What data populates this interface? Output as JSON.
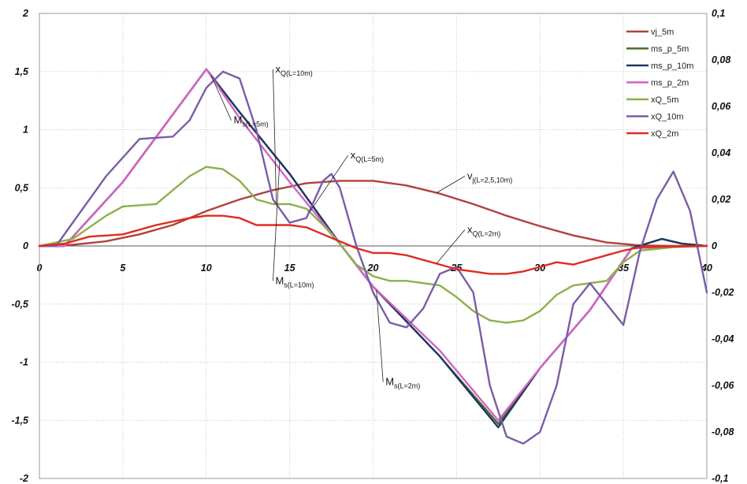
{
  "chart_data": {
    "type": "line",
    "title": "",
    "xlabel": "",
    "ylabel": "",
    "xlim": [
      0,
      40
    ],
    "ylim": [
      -2,
      2
    ],
    "y2lim": [
      -0.1,
      0.1
    ],
    "grid": true,
    "legend_position": "top-right",
    "x_ticks": [
      "0",
      "5",
      "10",
      "15",
      "20",
      "25",
      "30",
      "35",
      "40"
    ],
    "y_ticks": [
      "2",
      "1,5",
      "1",
      "0,5",
      "0",
      "-0,5",
      "-1",
      "-1,5",
      "-2"
    ],
    "y2_ticks": [
      "0,1",
      "0,08",
      "0,06",
      "0,04",
      "0,02",
      "0",
      "-0,02",
      "-0,04",
      "-0,06",
      "-0,08",
      "-0,1"
    ],
    "series": [
      {
        "name": "vj_5m",
        "color": "#b0413e",
        "axis": "left",
        "points": [
          [
            0,
            0
          ],
          [
            2,
            0.01
          ],
          [
            4,
            0.04
          ],
          [
            6,
            0.1
          ],
          [
            8,
            0.18
          ],
          [
            10,
            0.3
          ],
          [
            12,
            0.4
          ],
          [
            14,
            0.48
          ],
          [
            16,
            0.54
          ],
          [
            18,
            0.56
          ],
          [
            20,
            0.56
          ],
          [
            22,
            0.52
          ],
          [
            24,
            0.45
          ],
          [
            26,
            0.36
          ],
          [
            28,
            0.26
          ],
          [
            30,
            0.17
          ],
          [
            32,
            0.09
          ],
          [
            34,
            0.03
          ],
          [
            36,
            0.005
          ],
          [
            38,
            0
          ],
          [
            40,
            0
          ]
        ]
      },
      {
        "name": "ms_p_5m",
        "color": "#4a6b2a",
        "axis": "left",
        "points": [
          [
            0,
            0
          ],
          [
            1.5,
            0
          ],
          [
            5,
            0.55
          ],
          [
            10,
            1.52
          ],
          [
            12,
            1.15
          ],
          [
            15,
            0.62
          ],
          [
            18,
            0.02
          ],
          [
            20,
            -0.35
          ],
          [
            24,
            -0.95
          ],
          [
            27.5,
            -1.53
          ],
          [
            30,
            -1.05
          ],
          [
            33,
            -0.55
          ],
          [
            35.5,
            -0.02
          ],
          [
            37.3,
            0.06
          ],
          [
            38.5,
            0.02
          ],
          [
            40,
            0
          ]
        ]
      },
      {
        "name": "ms_p_10m",
        "color": "#1f3864",
        "axis": "left",
        "points": [
          [
            0,
            0
          ],
          [
            1.5,
            0
          ],
          [
            5,
            0.55
          ],
          [
            10,
            1.52
          ],
          [
            12,
            1.15
          ],
          [
            15,
            0.62
          ],
          [
            18,
            0.02
          ],
          [
            20,
            -0.35
          ],
          [
            24,
            -0.95
          ],
          [
            27.5,
            -1.56
          ],
          [
            30,
            -1.05
          ],
          [
            33,
            -0.55
          ],
          [
            35.5,
            -0.02
          ],
          [
            37.3,
            0.06
          ],
          [
            38.5,
            0.02
          ],
          [
            40,
            0
          ]
        ]
      },
      {
        "name": "ms_p_2m",
        "color": "#d464c4",
        "axis": "left",
        "points": [
          [
            0,
            0
          ],
          [
            1.5,
            0
          ],
          [
            5,
            0.55
          ],
          [
            10,
            1.52
          ],
          [
            12,
            1.1
          ],
          [
            15,
            0.55
          ],
          [
            18,
            0.02
          ],
          [
            20,
            -0.35
          ],
          [
            24,
            -0.9
          ],
          [
            27.5,
            -1.5
          ],
          [
            30,
            -1.05
          ],
          [
            33,
            -0.55
          ],
          [
            35.5,
            -0.02
          ],
          [
            40,
            0
          ]
        ]
      },
      {
        "name": "xQ_5m",
        "color": "#8db04a",
        "axis": "right",
        "points": [
          [
            0,
            0
          ],
          [
            2,
            0.003
          ],
          [
            4,
            0.013
          ],
          [
            5,
            0.017
          ],
          [
            7,
            0.018
          ],
          [
            9,
            0.03
          ],
          [
            10,
            0.034
          ],
          [
            11,
            0.033
          ],
          [
            12,
            0.028
          ],
          [
            13,
            0.02
          ],
          [
            14,
            0.018
          ],
          [
            15,
            0.018
          ],
          [
            16,
            0.016
          ],
          [
            17,
            0.009
          ],
          [
            18,
            0.001
          ],
          [
            19,
            -0.008
          ],
          [
            20,
            -0.013
          ],
          [
            21,
            -0.015
          ],
          [
            22,
            -0.015
          ],
          [
            24,
            -0.017
          ],
          [
            25,
            -0.022
          ],
          [
            26,
            -0.028
          ],
          [
            27,
            -0.032
          ],
          [
            28,
            -0.033
          ],
          [
            29,
            -0.032
          ],
          [
            30,
            -0.028
          ],
          [
            31,
            -0.021
          ],
          [
            32,
            -0.017
          ],
          [
            33,
            -0.016
          ],
          [
            34,
            -0.015
          ],
          [
            35,
            -0.007
          ],
          [
            36,
            -0.002
          ],
          [
            38,
            -0.0005
          ],
          [
            40,
            0
          ]
        ]
      },
      {
        "name": "xQ_10m",
        "color": "#7a5ca8",
        "axis": "right",
        "points": [
          [
            0,
            0
          ],
          [
            1,
            0
          ],
          [
            2,
            0.01
          ],
          [
            4,
            0.03
          ],
          [
            6,
            0.046
          ],
          [
            8,
            0.047
          ],
          [
            9,
            0.054
          ],
          [
            10,
            0.068
          ],
          [
            11,
            0.075
          ],
          [
            12,
            0.072
          ],
          [
            13,
            0.05
          ],
          [
            14,
            0.02
          ],
          [
            15,
            0.01
          ],
          [
            16,
            0.012
          ],
          [
            17,
            0.028
          ],
          [
            17.5,
            0.031
          ],
          [
            18,
            0.025
          ],
          [
            19,
            0
          ],
          [
            20,
            -0.02
          ],
          [
            21,
            -0.033
          ],
          [
            22,
            -0.035
          ],
          [
            23,
            -0.027
          ],
          [
            24,
            -0.012
          ],
          [
            25,
            -0.009
          ],
          [
            26,
            -0.02
          ],
          [
            27,
            -0.06
          ],
          [
            28,
            -0.082
          ],
          [
            29,
            -0.085
          ],
          [
            30,
            -0.08
          ],
          [
            31,
            -0.06
          ],
          [
            32,
            -0.025
          ],
          [
            33,
            -0.016
          ],
          [
            34,
            -0.025
          ],
          [
            35,
            -0.034
          ],
          [
            36,
            -0.002
          ],
          [
            37,
            0.02
          ],
          [
            38,
            0.032
          ],
          [
            39,
            0.015
          ],
          [
            40,
            -0.02
          ]
        ]
      },
      {
        "name": "xQ_2m",
        "color": "#e02b20",
        "axis": "right",
        "points": [
          [
            0,
            0
          ],
          [
            1.5,
            0.001
          ],
          [
            3,
            0.004
          ],
          [
            5,
            0.005
          ],
          [
            7,
            0.009
          ],
          [
            9,
            0.012
          ],
          [
            10,
            0.013
          ],
          [
            11,
            0.013
          ],
          [
            12,
            0.012
          ],
          [
            13,
            0.009
          ],
          [
            15,
            0.009
          ],
          [
            16,
            0.008
          ],
          [
            17,
            0.005
          ],
          [
            18,
            0.002
          ],
          [
            19,
            -0.001
          ],
          [
            20,
            -0.003
          ],
          [
            21,
            -0.003
          ],
          [
            22,
            -0.004
          ],
          [
            24,
            -0.008
          ],
          [
            25,
            -0.01
          ],
          [
            26,
            -0.011
          ],
          [
            27,
            -0.012
          ],
          [
            28,
            -0.012
          ],
          [
            29,
            -0.011
          ],
          [
            30,
            -0.009
          ],
          [
            31,
            -0.007
          ],
          [
            32,
            -0.008
          ],
          [
            33,
            -0.006
          ],
          [
            34,
            -0.004
          ],
          [
            35,
            -0.002
          ],
          [
            36,
            -0.0005
          ],
          [
            40,
            0
          ]
        ]
      }
    ],
    "annotations": [
      {
        "main": "x",
        "sub": "Q(L=10m)",
        "x": 14,
        "y": 1.52,
        "series": "xQ_10m",
        "tx": 14.2,
        "ty": 1.47
      },
      {
        "main": "M",
        "sub": "s(L=5m)",
        "x": 11.5,
        "y": 1.08,
        "series": "ms_p_5m",
        "tx": 10.3,
        "ty": 0.88
      },
      {
        "main": "x",
        "sub": "Q(L=5m)",
        "x": 18.5,
        "y": 0.78,
        "series": "xQ_5m",
        "tx": 16.2,
        "ty": 0.83
      },
      {
        "main": "v",
        "sub": "j(L=2,5,10m)",
        "x": 25.5,
        "y": 0.6,
        "series": "vj_5m",
        "tx": 23.8,
        "ty": 0.61
      },
      {
        "main": "x",
        "sub": "Q(L=2m)",
        "x": 25.5,
        "y": 0.14,
        "series": "xQ_2m",
        "tx": 23.8,
        "ty": 0.09
      },
      {
        "main": "M",
        "sub": "s(L=10m)",
        "x": 14,
        "y": -0.3,
        "series": "ms_p_10m",
        "tx": 14.4,
        "ty": -0.3
      },
      {
        "main": "M",
        "sub": "s(L=2m)",
        "x": 20.6,
        "y": -1.17,
        "series": "ms_p_2m",
        "tx": 20.2,
        "ty": -1.17
      }
    ]
  }
}
